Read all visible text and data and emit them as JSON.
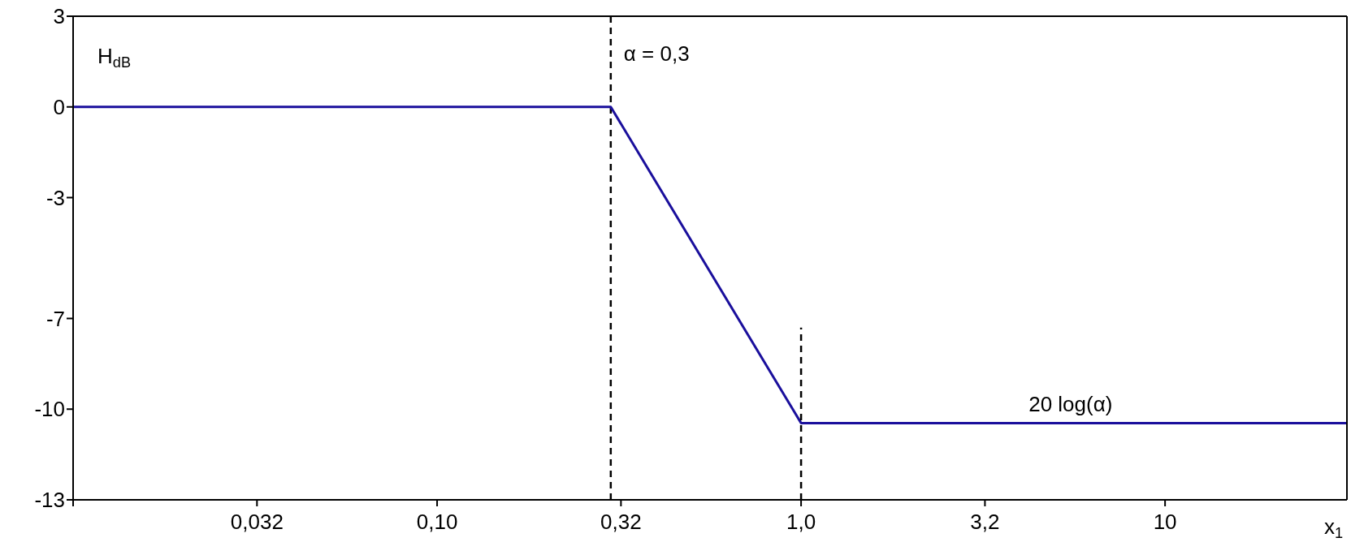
{
  "chart_data": {
    "type": "line",
    "xlabel": "x$_{1}$",
    "ylabel": "H$_{dB}$",
    "log": "x",
    "xlim": [
      0.01,
      31.6
    ],
    "ylim": [
      -13,
      3
    ],
    "xticks": [
      {
        "value": 0.01,
        "label": null
      },
      {
        "value": 0.032,
        "label": "0,032"
      },
      {
        "value": 0.1,
        "label": "0,10"
      },
      {
        "value": 0.32,
        "label": "0,32"
      },
      {
        "value": 1,
        "label": "1,0"
      },
      {
        "value": 3.2,
        "label": "3,2"
      },
      {
        "value": 10,
        "label": "10"
      }
    ],
    "yticks": [
      3,
      0,
      -3,
      -7,
      -10,
      -13
    ],
    "series": [
      {
        "color": "#1a0f9c",
        "x": [
          0.01,
          0.3,
          1,
          31.6
        ],
        "values": [
          0,
          0,
          -10.46,
          -10.46
        ],
        "line_style": "solid"
      },
      {
        "color": "#000000",
        "x": [
          1,
          1
        ],
        "values": [
          -13,
          -7.3
        ],
        "line_style": "dashed"
      }
    ],
    "ref_lines": [
      {
        "axis": "x",
        "value": 0.3,
        "label": "α = 0,3",
        "color": "#000000",
        "line_style": "dashed"
      }
    ],
    "annotations": [
      {
        "text": "20 log(α)",
        "x": 5.5,
        "y": -10.46
      }
    ],
    "marker": "none"
  }
}
